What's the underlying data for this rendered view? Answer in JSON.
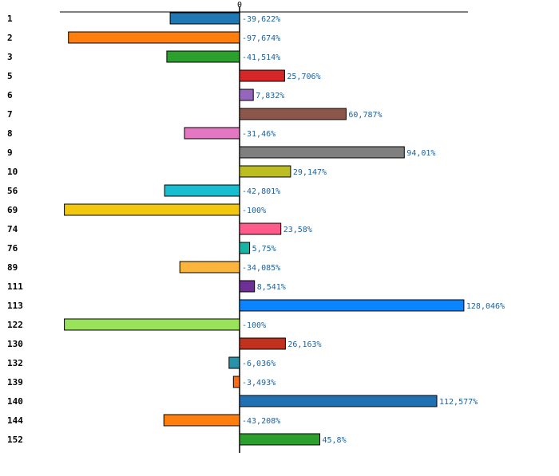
{
  "chart_data": {
    "type": "bar",
    "orientation": "horizontal",
    "title": "",
    "xlabel": "",
    "ylabel": "",
    "grid": false,
    "xlim": [
      -100,
      130
    ],
    "zero_tick": "0",
    "categories": [
      "1",
      "2",
      "3",
      "5",
      "6",
      "7",
      "8",
      "9",
      "10",
      "56",
      "69",
      "74",
      "76",
      "89",
      "111",
      "113",
      "122",
      "130",
      "132",
      "139",
      "140",
      "144",
      "152"
    ],
    "values": [
      -39.622,
      -97.674,
      -41.514,
      25.706,
      7.832,
      60.787,
      -31.46,
      94.01,
      29.147,
      -42.801,
      -100,
      23.58,
      5.75,
      -34.085,
      8.541,
      128.046,
      -100,
      26.163,
      -6.036,
      -3.493,
      112.577,
      -43.208,
      45.8
    ],
    "value_labels": [
      "-39,622%",
      "-97,674%",
      "-41,514%",
      "25,706%",
      "7,832%",
      "60,787%",
      "-31,46%",
      "94,01%",
      "29,147%",
      "-42,801%",
      "-100%",
      "23,58%",
      "5,75%",
      "-34,085%",
      "8,541%",
      "128,046%",
      "-100%",
      "26,163%",
      "-6,036%",
      "-3,493%",
      "112,577%",
      "-43,208%",
      "45,8%"
    ],
    "colors": [
      "#1f77b4",
      "#ff7f0e",
      "#2ca02c",
      "#d62728",
      "#9467bd",
      "#8c564b",
      "#e377c2",
      "#7f7f7f",
      "#bcbd22",
      "#17becf",
      "#f2c80f",
      "#ff5a8c",
      "#17b3a3",
      "#fbb43c",
      "#6e3096",
      "#0a84ff",
      "#98e35a",
      "#c0321e",
      "#2892a8",
      "#ff6a14",
      "#2070b4",
      "#ff7f0e",
      "#2ca02c"
    ]
  }
}
